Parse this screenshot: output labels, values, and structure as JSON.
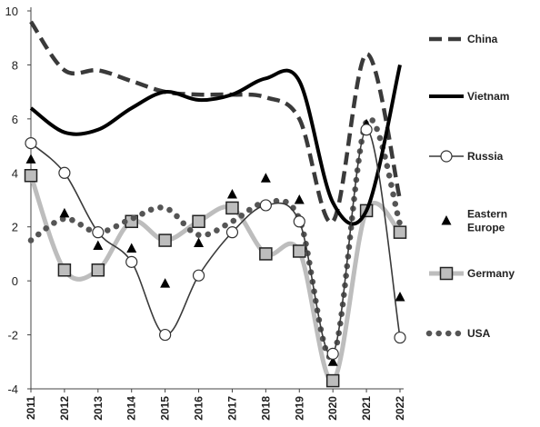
{
  "chart_data": {
    "type": "line",
    "title": "",
    "xlabel": "",
    "ylabel": "",
    "x": [
      "2011",
      "2012",
      "2013",
      "2014",
      "2015",
      "2016",
      "2017",
      "2018",
      "2019",
      "2020",
      "2021",
      "2022"
    ],
    "ylim": [
      -4,
      10
    ],
    "yticks": [
      -4,
      -2,
      0,
      2,
      4,
      6,
      8,
      10
    ],
    "grid": false,
    "legend_position": "right",
    "series": [
      {
        "name": "China",
        "values": [
          9.6,
          7.8,
          7.8,
          7.4,
          7.0,
          6.9,
          6.9,
          6.8,
          6.0,
          2.2,
          8.4,
          3.0
        ],
        "color": "#3a3a3a",
        "style": "dashed",
        "marker": "none"
      },
      {
        "name": "Vietnam",
        "values": [
          6.4,
          5.5,
          5.6,
          6.4,
          7.0,
          6.7,
          6.9,
          7.5,
          7.4,
          2.9,
          2.6,
          8.0
        ],
        "color": "#000000",
        "style": "solid",
        "marker": "none"
      },
      {
        "name": "Russia",
        "values": [
          5.1,
          4.0,
          1.8,
          0.7,
          -2.0,
          0.2,
          1.8,
          2.8,
          2.2,
          -2.7,
          5.6,
          -2.1
        ],
        "color": "#3a3a3a",
        "style": "thin",
        "marker": "circle"
      },
      {
        "name": "Eastern\nEurope",
        "values": [
          4.5,
          2.5,
          1.3,
          1.2,
          -0.1,
          1.4,
          3.2,
          3.8,
          3.0,
          -3.0,
          5.8,
          -0.6
        ],
        "color": "#000000",
        "style": "none",
        "marker": "triangle"
      },
      {
        "name": "Germany",
        "values": [
          3.9,
          0.4,
          0.4,
          2.2,
          1.5,
          2.2,
          2.7,
          1.0,
          1.1,
          -3.7,
          2.6,
          1.8
        ],
        "color": "#bdbdbd",
        "style": "thick",
        "marker": "square"
      },
      {
        "name": "USA",
        "values": [
          1.5,
          2.3,
          1.8,
          2.3,
          2.7,
          1.7,
          2.2,
          2.9,
          2.3,
          -2.8,
          5.9,
          2.1
        ],
        "color": "#555555",
        "style": "dotted",
        "marker": "none"
      }
    ]
  }
}
